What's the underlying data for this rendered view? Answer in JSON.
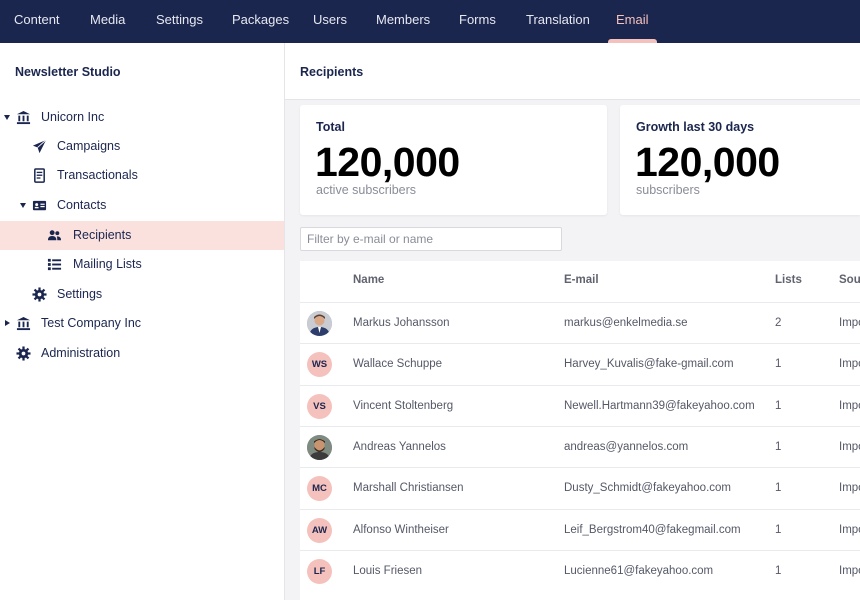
{
  "topnav": {
    "items": [
      "Content",
      "Media",
      "Settings",
      "Packages",
      "Users",
      "Members",
      "Forms",
      "Translation",
      "Email"
    ],
    "active": "Email"
  },
  "sidebar": {
    "title": "Newsletter Studio",
    "tree": [
      {
        "label": "Unicorn Inc",
        "icon": "bank-icon"
      },
      {
        "label": "Campaigns",
        "icon": "paper-plane-icon"
      },
      {
        "label": "Transactionals",
        "icon": "receipt-icon"
      },
      {
        "label": "Contacts",
        "icon": "id-card-icon"
      },
      {
        "label": "Recipients",
        "icon": "users-icon"
      },
      {
        "label": "Mailing Lists",
        "icon": "list-icon"
      },
      {
        "label": "Settings",
        "icon": "gear-icon"
      },
      {
        "label": "Test Company Inc",
        "icon": "bank-icon"
      },
      {
        "label": "Administration",
        "icon": "gear-icon"
      }
    ]
  },
  "main": {
    "title": "Recipients",
    "cards": [
      {
        "title": "Total",
        "value": "120,000",
        "sub": "active subscribers"
      },
      {
        "title": "Growth last 30 days",
        "value": "120,000",
        "sub": "subscribers"
      }
    ],
    "filter": {
      "placeholder": "Filter by e-mail or name",
      "value": ""
    },
    "table": {
      "columns": [
        "Name",
        "E-mail",
        "Lists",
        "Sour"
      ],
      "rows": [
        {
          "initials": "",
          "photo": true,
          "name": "Markus Johansson",
          "email": "markus@enkelmedia.se",
          "lists": "2",
          "source": "Impo"
        },
        {
          "initials": "WS",
          "photo": false,
          "name": "Wallace Schuppe",
          "email": "Harvey_Kuvalis@fake-gmail.com",
          "lists": "1",
          "source": "Impo"
        },
        {
          "initials": "VS",
          "photo": false,
          "name": "Vincent Stoltenberg",
          "email": "Newell.Hartmann39@fakeyahoo.com",
          "lists": "1",
          "source": "Impo"
        },
        {
          "initials": "",
          "photo": true,
          "name": "Andreas Yannelos",
          "email": "andreas@yannelos.com",
          "lists": "1",
          "source": "Impo"
        },
        {
          "initials": "MC",
          "photo": false,
          "name": "Marshall Christiansen",
          "email": "Dusty_Schmidt@fakeyahoo.com",
          "lists": "1",
          "source": "Impo"
        },
        {
          "initials": "AW",
          "photo": false,
          "name": "Alfonso Wintheiser",
          "email": "Leif_Bergstrom40@fakegmail.com",
          "lists": "1",
          "source": "Impo"
        },
        {
          "initials": "LF",
          "photo": false,
          "name": "Louis Friesen",
          "email": "Lucienne61@fakeyahoo.com",
          "lists": "1",
          "source": "Impo"
        }
      ]
    }
  },
  "colors": {
    "nav_bg": "#1b264f",
    "accent": "#f5c1bc",
    "selected_bg": "#fbe1de"
  }
}
